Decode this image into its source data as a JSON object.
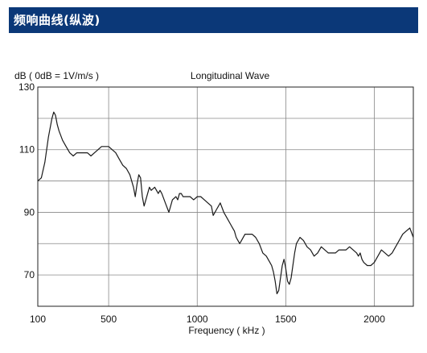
{
  "header": {
    "title": "频响曲线(纵波)"
  },
  "chart_data": {
    "type": "line",
    "title": "Longitudinal Wave",
    "xlabel": "Frequency ( kHz )",
    "ylabel": "dB ( 0dB = 1V/m/s )",
    "xlim": [
      100,
      2220
    ],
    "ylim": [
      60,
      130
    ],
    "x_ticks": [
      100,
      500,
      1000,
      1500,
      2000
    ],
    "y_ticks": [
      70,
      90,
      110,
      130
    ],
    "y_grid": [
      70,
      80,
      90,
      100,
      110,
      120,
      130
    ],
    "grid": true,
    "line_color": "#1a1a1a",
    "grid_color": "#888888",
    "series": [
      {
        "name": "",
        "x": [
          100,
          120,
          140,
          160,
          180,
          190,
          200,
          210,
          220,
          240,
          260,
          280,
          300,
          320,
          340,
          360,
          380,
          400,
          420,
          440,
          460,
          480,
          500,
          520,
          540,
          560,
          580,
          600,
          620,
          640,
          650,
          660,
          670,
          680,
          690,
          700,
          710,
          720,
          730,
          740,
          760,
          780,
          790,
          800,
          820,
          840,
          860,
          880,
          890,
          900,
          910,
          920,
          930,
          950,
          960,
          980,
          1000,
          1020,
          1040,
          1060,
          1080,
          1090,
          1100,
          1110,
          1120,
          1130,
          1150,
          1170,
          1190,
          1200,
          1210,
          1220,
          1230,
          1240,
          1250,
          1270,
          1290,
          1310,
          1330,
          1350,
          1370,
          1390,
          1410,
          1420,
          1430,
          1440,
          1450,
          1460,
          1470,
          1480,
          1490,
          1500,
          1510,
          1520,
          1530,
          1540,
          1550,
          1560,
          1570,
          1580,
          1600,
          1620,
          1640,
          1660,
          1680,
          1700,
          1720,
          1740,
          1760,
          1780,
          1800,
          1820,
          1840,
          1860,
          1880,
          1900,
          1910,
          1920,
          1930,
          1940,
          1960,
          1980,
          2000,
          2020,
          2040,
          2060,
          2080,
          2100,
          2120,
          2140,
          2160,
          2180,
          2200,
          2220
        ],
        "y": [
          100,
          101,
          106,
          114,
          120,
          122,
          121,
          118,
          116,
          113,
          111,
          109,
          108,
          109,
          109,
          109,
          109,
          108,
          109,
          110,
          111,
          111,
          111,
          110,
          109,
          107,
          105,
          104,
          102,
          98,
          95,
          99,
          102,
          101,
          95,
          92,
          94,
          96,
          98,
          97,
          98,
          96,
          97,
          96,
          93,
          90,
          94,
          95,
          94,
          96,
          96,
          95,
          95,
          95,
          95,
          94,
          95,
          95,
          94,
          93,
          92,
          89,
          90,
          91,
          92,
          93,
          90,
          88,
          86,
          85,
          84,
          82,
          81,
          80,
          81,
          83,
          83,
          83,
          82,
          80,
          77,
          76,
          74,
          73,
          71,
          68,
          64,
          65,
          69,
          73,
          75,
          72,
          68,
          67,
          69,
          73,
          77,
          80,
          81,
          82,
          81,
          79,
          78,
          76,
          77,
          79,
          78,
          77,
          77,
          77,
          78,
          78,
          78,
          79,
          78,
          77,
          76,
          77,
          75,
          74,
          73,
          73,
          74,
          76,
          78,
          77,
          76,
          77,
          79,
          81,
          83,
          84,
          85,
          82
        ]
      }
    ]
  }
}
